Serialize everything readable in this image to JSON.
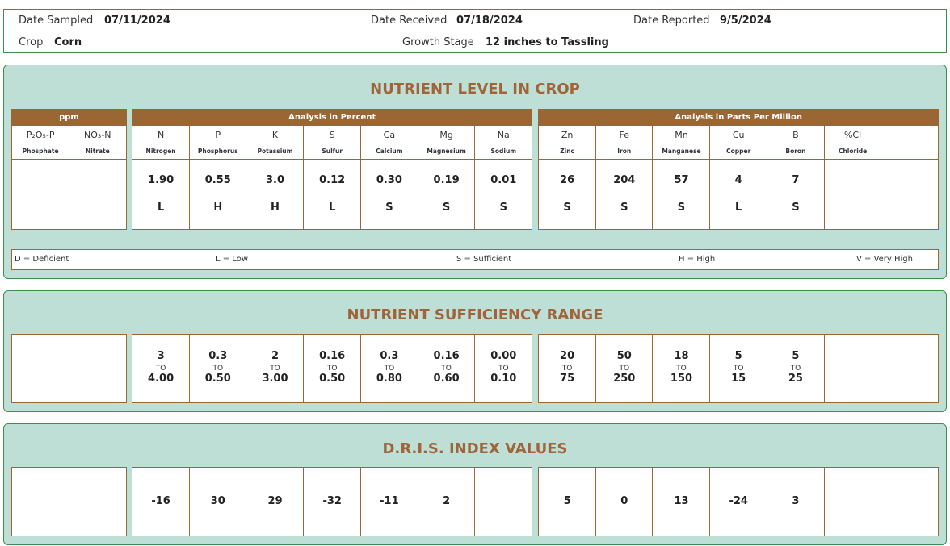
{
  "header": {
    "rows": [
      [
        {
          "label": "Date Sampled",
          "value": "07/11/2024"
        },
        {
          "label": "Date Received",
          "value": "07/18/2024"
        },
        {
          "label": "Date Reported",
          "value": "9/5/2024"
        }
      ],
      [
        {
          "label": "Crop",
          "value": "Corn"
        },
        {
          "label": "Growth Stage",
          "value": "12 inches to Tassling"
        }
      ]
    ]
  },
  "nutrient_level": {
    "title": "NUTRIENT LEVEL IN CROP",
    "groups": [
      {
        "title": "ppm",
        "columns": [
          {
            "symbol": "P₂O₅-P",
            "name": "Phosphate"
          },
          {
            "symbol": "NO₃-N",
            "name": "Nitrate"
          }
        ]
      },
      {
        "title": "Analysis in Percent",
        "columns": [
          {
            "symbol": "N",
            "name": "Nitrogen",
            "value": "1.90",
            "rating": "L"
          },
          {
            "symbol": "P",
            "name": "Phosphorus",
            "value": "0.55",
            "rating": "H"
          },
          {
            "symbol": "K",
            "name": "Potassium",
            "value": "3.0",
            "rating": "H"
          },
          {
            "symbol": "S",
            "name": "Sulfur",
            "value": "0.12",
            "rating": "L"
          },
          {
            "symbol": "Ca",
            "name": "Calcium",
            "value": "0.30",
            "rating": "S"
          },
          {
            "symbol": "Mg",
            "name": "Magnesium",
            "value": "0.19",
            "rating": "S"
          },
          {
            "symbol": "Na",
            "name": "Sodium",
            "value": "0.01",
            "rating": "S"
          }
        ]
      },
      {
        "title": "Analysis in Parts Per Million",
        "columns": [
          {
            "symbol": "Zn",
            "name": "Zinc",
            "value": "26",
            "rating": "S"
          },
          {
            "symbol": "Fe",
            "name": "Iron",
            "value": "204",
            "rating": "S"
          },
          {
            "symbol": "Mn",
            "name": "Manganese",
            "value": "57",
            "rating": "S"
          },
          {
            "symbol": "Cu",
            "name": "Copper",
            "value": "4",
            "rating": "L"
          },
          {
            "symbol": "B",
            "name": "Boron",
            "value": "7",
            "rating": "S"
          },
          {
            "symbol": "%Cl",
            "name": "Chloride"
          },
          null
        ]
      }
    ],
    "legend": [
      "D = Deficient",
      "L = Low",
      "S = Sufficient",
      "H = High",
      "V = Very High"
    ]
  },
  "sufficiency": {
    "title": "NUTRIENT SUFFICIENCY RANGE",
    "to": "TO",
    "ranges": [
      null,
      null,
      {
        "low": "3",
        "high": "4.00"
      },
      {
        "low": "0.3",
        "high": "0.50"
      },
      {
        "low": "2",
        "high": "3.00"
      },
      {
        "low": "0.16",
        "high": "0.50"
      },
      {
        "low": "0.3",
        "high": "0.80"
      },
      {
        "low": "0.16",
        "high": "0.60"
      },
      {
        "low": "0.00",
        "high": "0.10"
      },
      {
        "low": "20",
        "high": "75"
      },
      {
        "low": "50",
        "high": "250"
      },
      {
        "low": "18",
        "high": "150"
      },
      {
        "low": "5",
        "high": "15"
      },
      {
        "low": "5",
        "high": "25"
      },
      null,
      null
    ]
  },
  "dris": {
    "title": "D.R.I.S. INDEX VALUES",
    "values": [
      null,
      null,
      "-16",
      "30",
      "29",
      "-32",
      "-11",
      "2",
      null,
      "5",
      "0",
      "13",
      "-24",
      "3",
      null,
      null
    ]
  }
}
